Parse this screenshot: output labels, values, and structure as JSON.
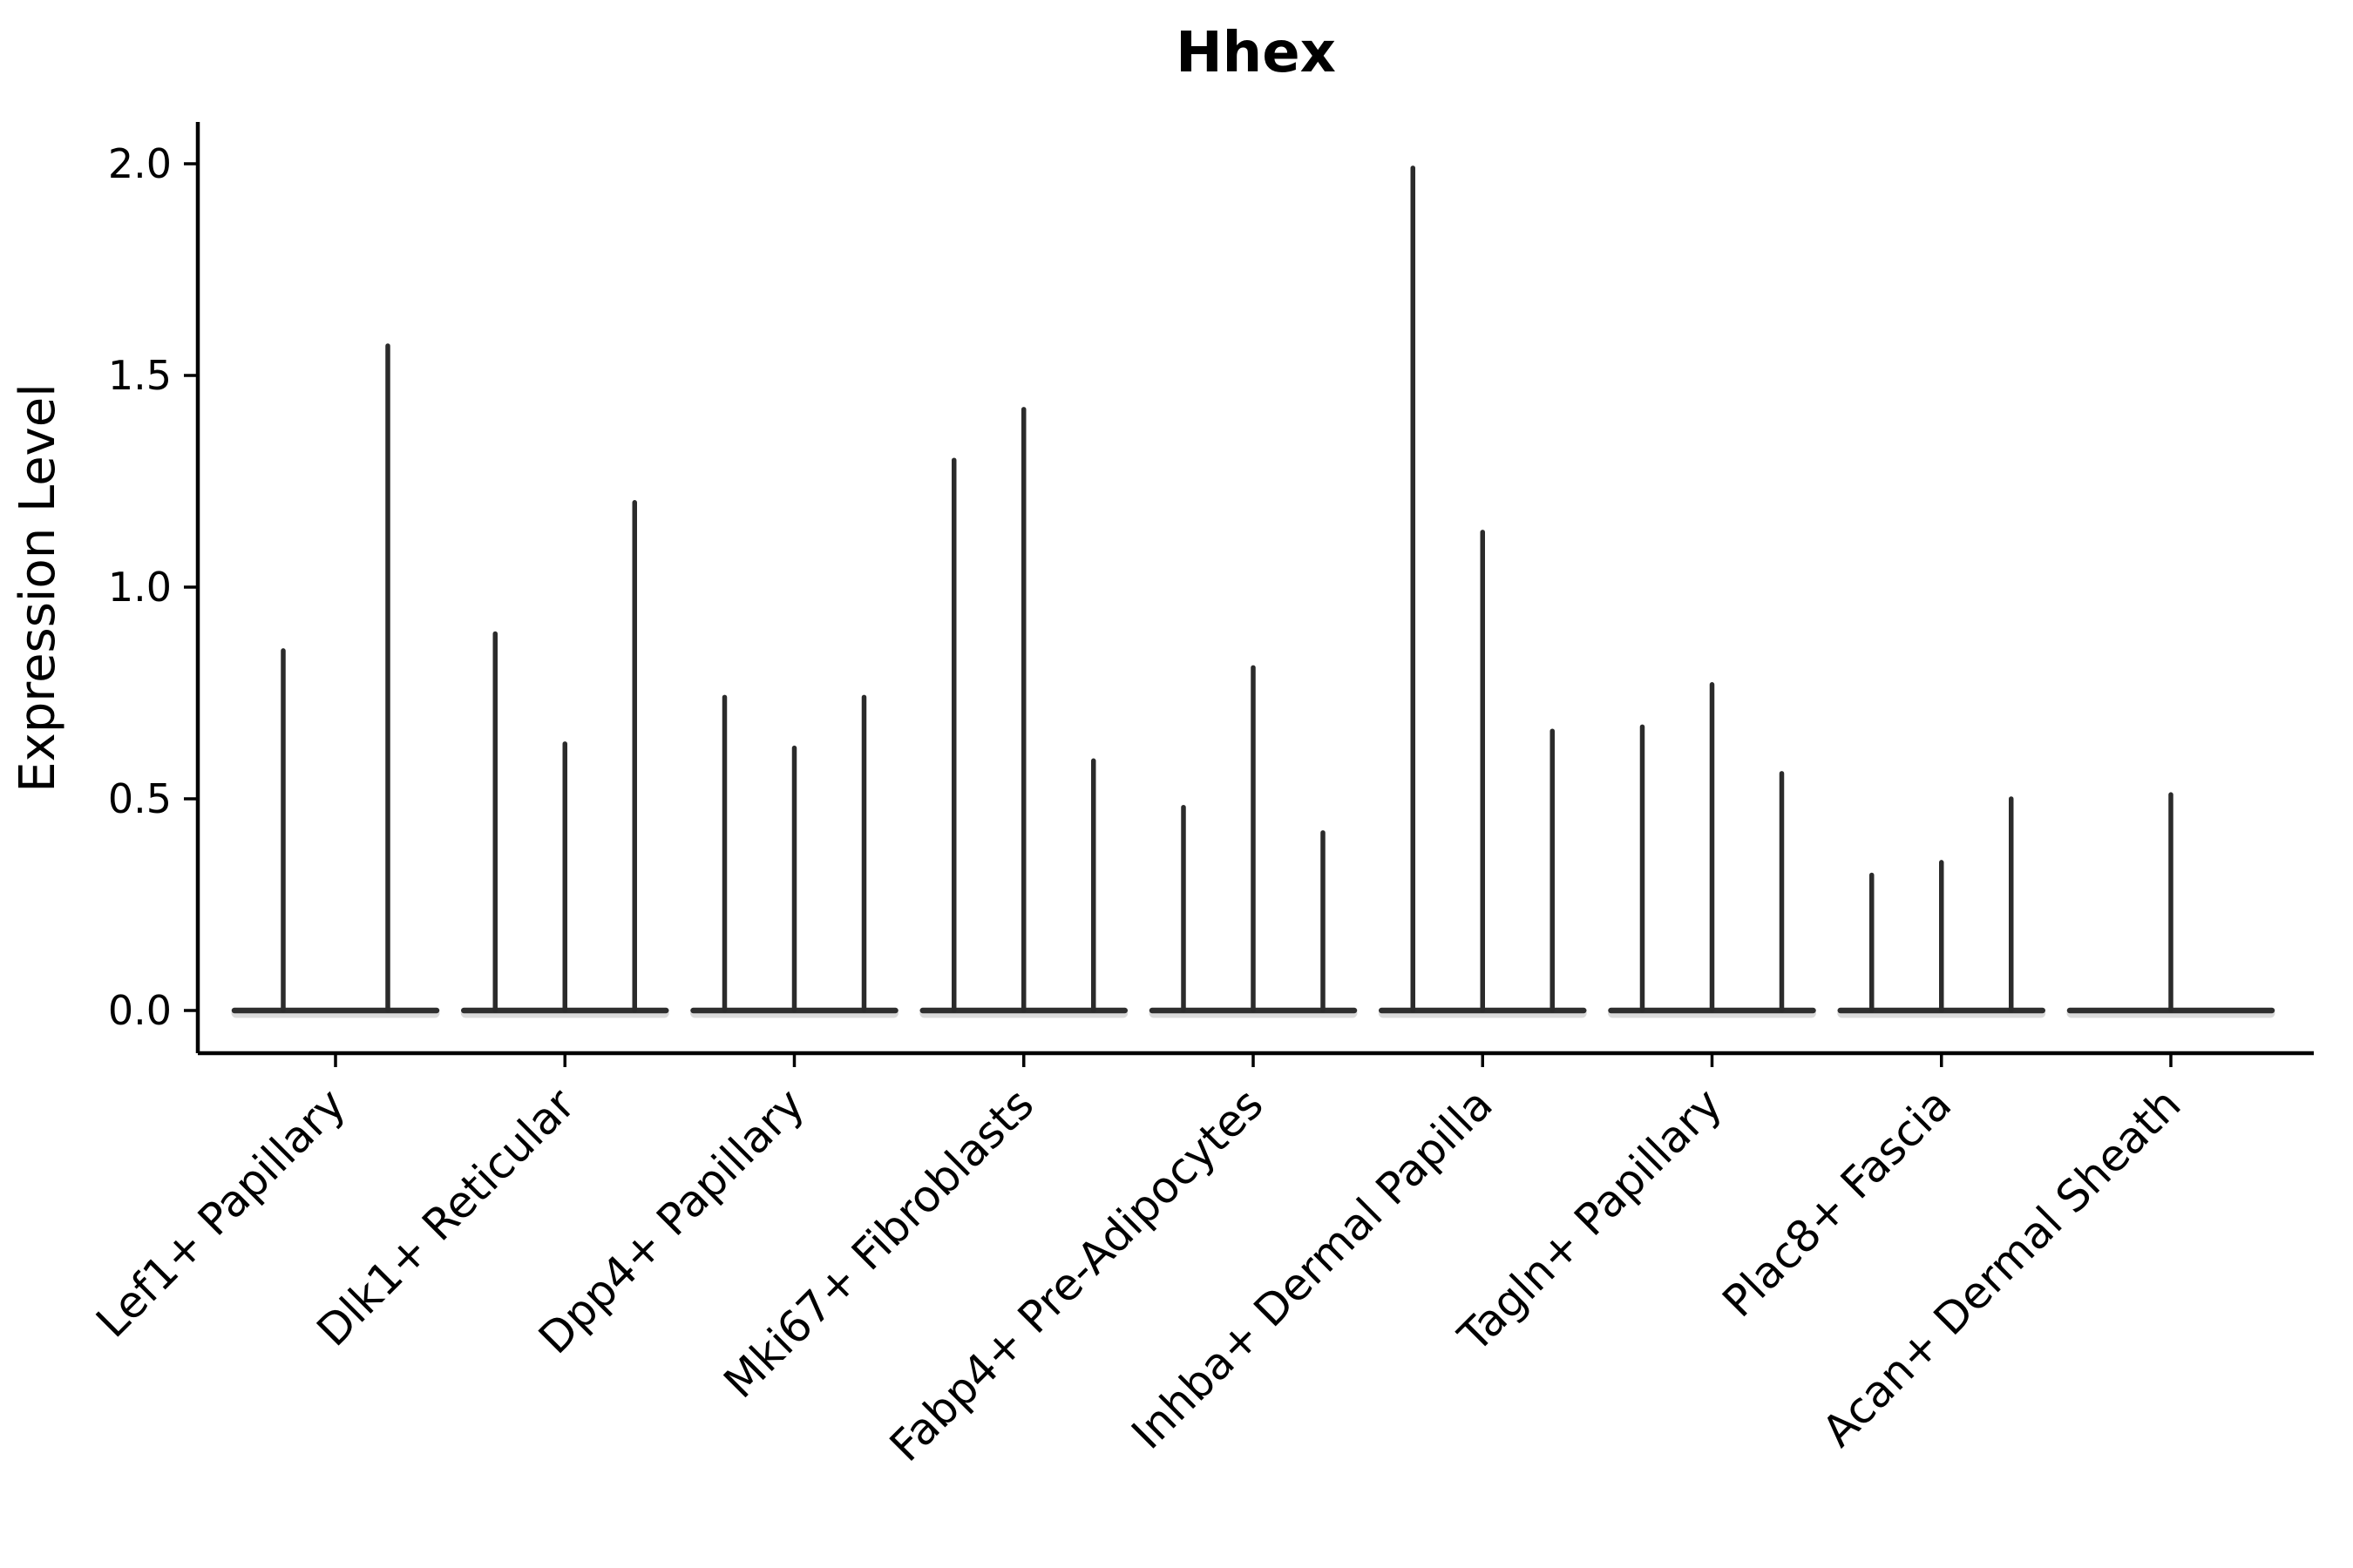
{
  "chart_data": {
    "type": "violin",
    "title": "Hhex",
    "xlabel": "",
    "ylabel": "Expression Level",
    "yticks": [
      "0.0",
      "0.5",
      "1.0",
      "1.5",
      "2.0"
    ],
    "ytick_values": [
      0.0,
      0.5,
      1.0,
      1.5,
      2.0
    ],
    "ylim": [
      -0.1,
      2.09
    ],
    "grid": false,
    "legend": "none",
    "x_tick_rotation_deg": 45,
    "categories": [
      "Lef1+ Papillary",
      "Dlk1+ Reticular",
      "Dpp4+ Papillary",
      "Mki67+ Fibroblasts",
      "Fabp4+ Pre-Adipocytes",
      "Inhba+ Dermal Papilla",
      "Tagln+ Papillary",
      "Plac8+ Fascia",
      "Acan+ Dermal Sheath"
    ],
    "violin_peak_values_per_category": [
      [
        0.85,
        1.57
      ],
      [
        0.89,
        0.63,
        1.2
      ],
      [
        0.74,
        0.62,
        0.74
      ],
      [
        1.3,
        1.42,
        0.59
      ],
      [
        0.48,
        0.81,
        0.42
      ],
      [
        1.99,
        1.13,
        0.66
      ],
      [
        0.67,
        0.77,
        0.56
      ],
      [
        0.32,
        0.35,
        0.5
      ],
      [
        0.51
      ]
    ],
    "description": "Sparse single-cell expression violins: each violin collapses to a flat bar at 0 with a single thin density spike rising to its maximum expression value.",
    "colors": {
      "line": "#2b2b2b",
      "baseline": "#2e2e2e",
      "baseline_shadow": "#9a9a9a",
      "text": "#000000",
      "background": "#ffffff"
    }
  }
}
